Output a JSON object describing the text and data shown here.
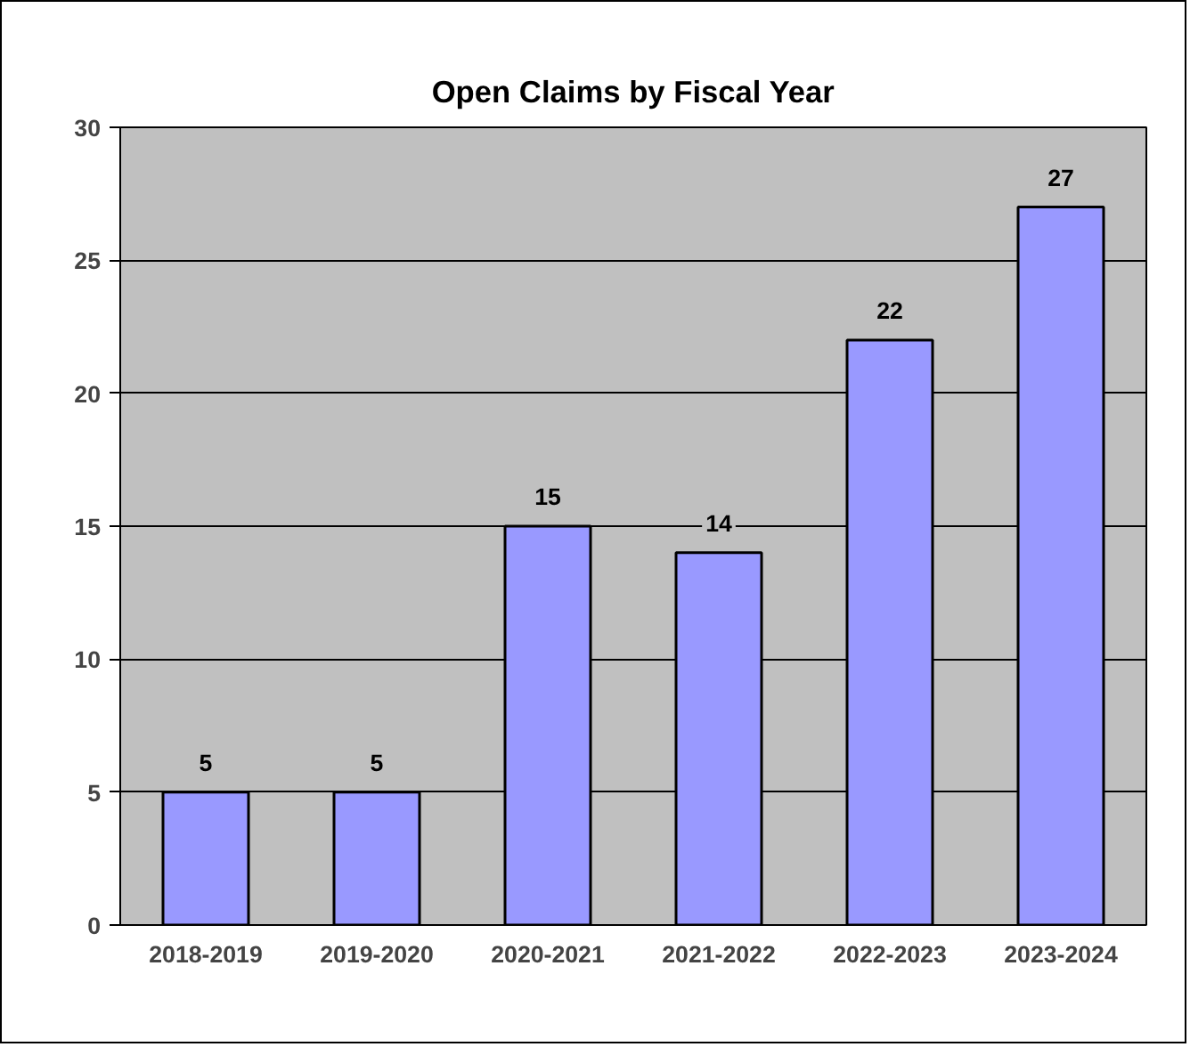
{
  "chart_data": {
    "type": "bar",
    "title": "Open Claims by Fiscal Year",
    "categories": [
      "2018-2019",
      "2019-2020",
      "2020-2021",
      "2021-2022",
      "2022-2023",
      "2023-2024"
    ],
    "values": [
      5,
      5,
      15,
      14,
      22,
      27
    ],
    "color": "#9999ff",
    "ylim": [
      0,
      30
    ],
    "yticks": [
      0,
      5,
      10,
      15,
      20,
      25,
      30
    ],
    "grid": "y",
    "data_labels": true
  }
}
